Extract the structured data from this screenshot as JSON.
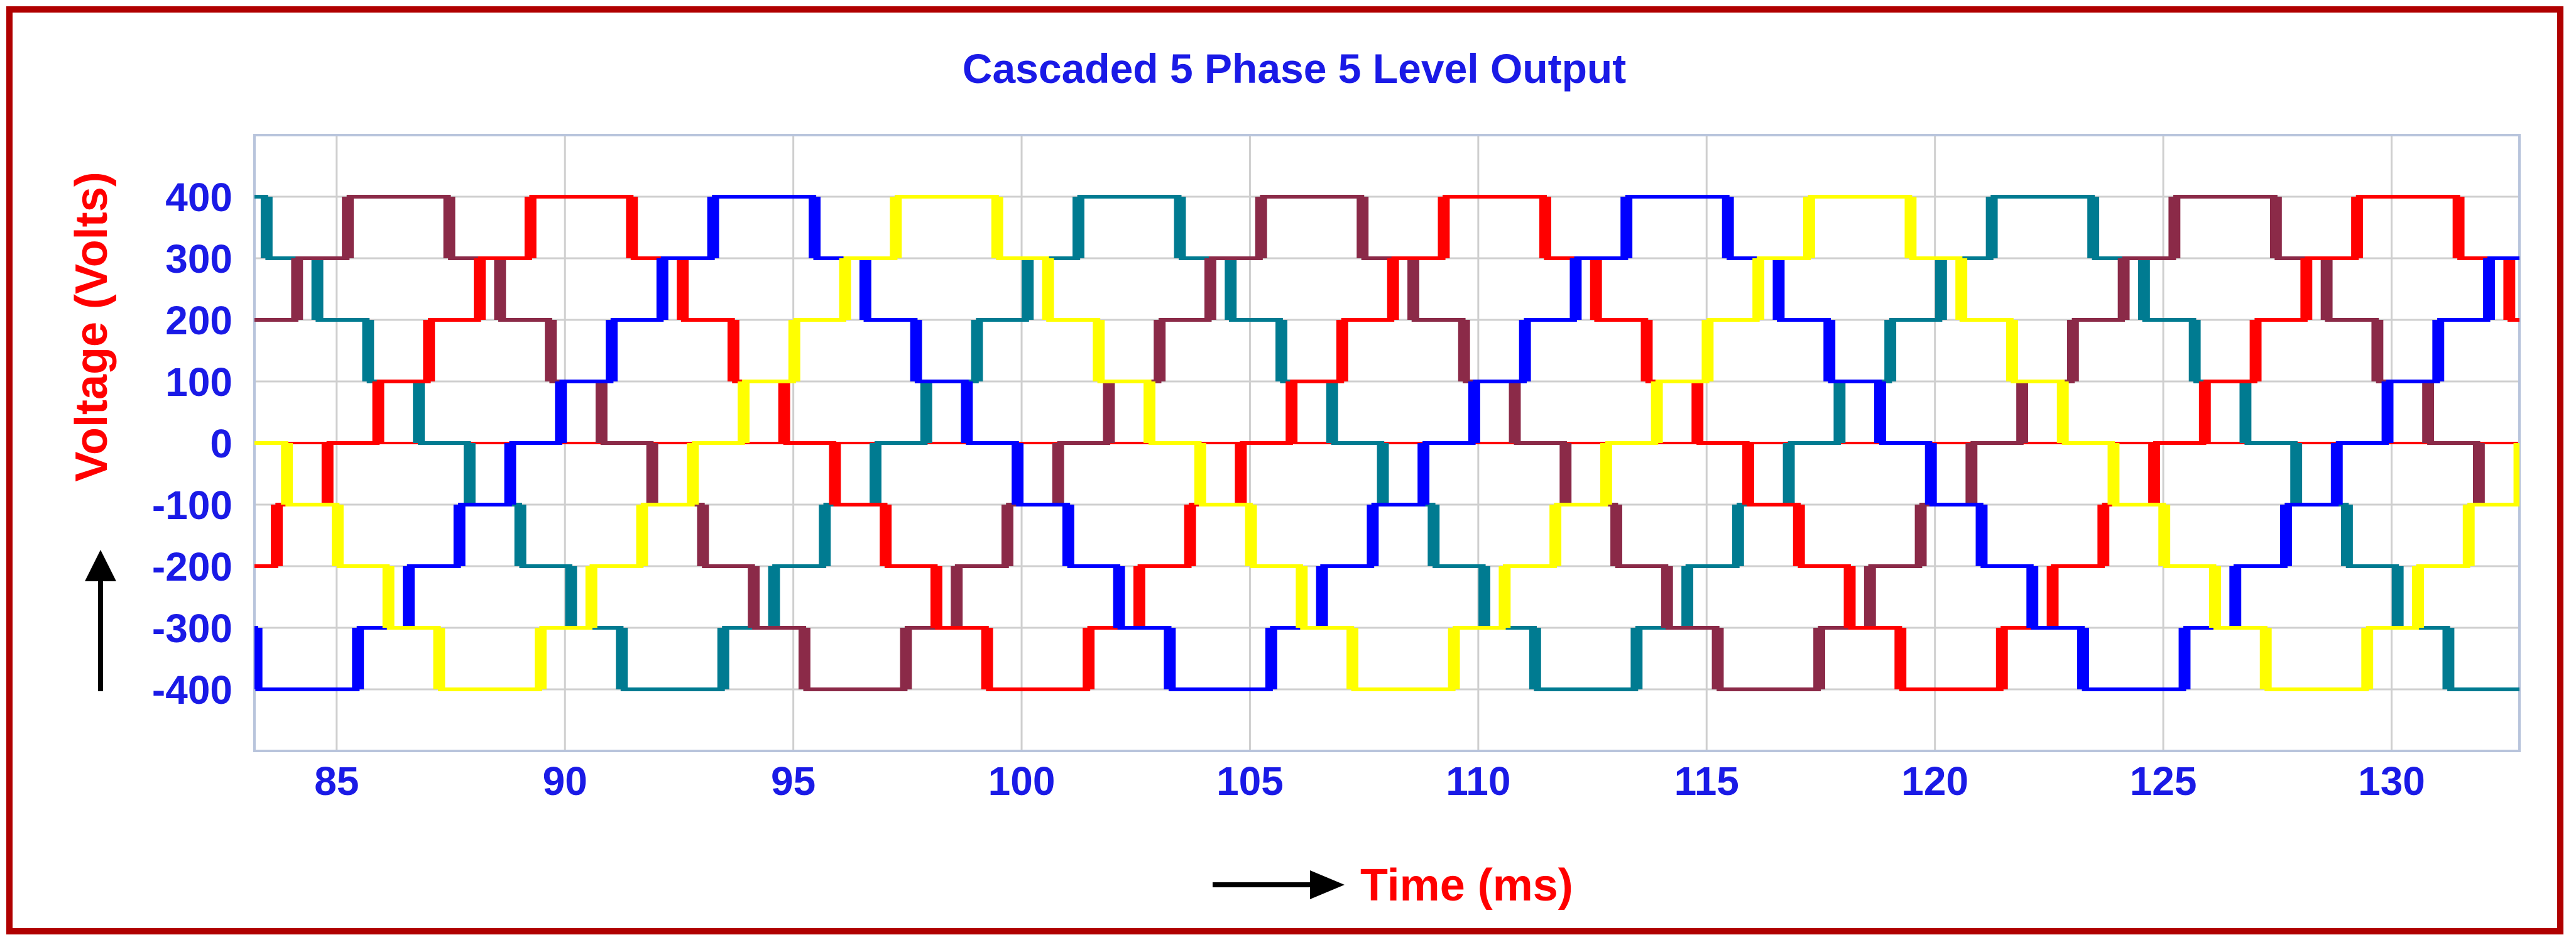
{
  "chart_data": {
    "type": "line",
    "title": "Cascaded 5 Phase 5 Level Output",
    "xlabel": "Time (ms)",
    "ylabel": "Voltage (Volts)",
    "xlim": [
      83.2,
      132.8
    ],
    "ylim": [
      -500,
      500
    ],
    "x_ticks": [
      "85",
      "90",
      "95",
      "100",
      "105",
      "110",
      "115",
      "120",
      "125",
      "130"
    ],
    "y_ticks": [
      "400",
      "300",
      "200",
      "100",
      "0",
      "-100",
      "-200",
      "-300",
      "-400"
    ],
    "y_tick_values": [
      400,
      300,
      200,
      100,
      0,
      -100,
      -200,
      -300,
      -400
    ],
    "grid": true,
    "waveform": {
      "kind": "five-level staircase",
      "levels": [
        -400,
        -300,
        -200,
        -100,
        0,
        100,
        200,
        300,
        400
      ],
      "period_ms": 20,
      "phase_shift_ms": 4
    },
    "series": [
      {
        "color": "#ff0000",
        "positive_peak_center_ms": 89.8
      },
      {
        "color": "#0000ff",
        "positive_peak_center_ms": 93.8
      },
      {
        "color": "#ffff00",
        "positive_peak_center_ms": 97.8
      },
      {
        "color": "#007b91",
        "positive_peak_center_ms": 101.8
      },
      {
        "color": "#8b2a48",
        "positive_peak_center_ms": 105.8
      }
    ]
  }
}
